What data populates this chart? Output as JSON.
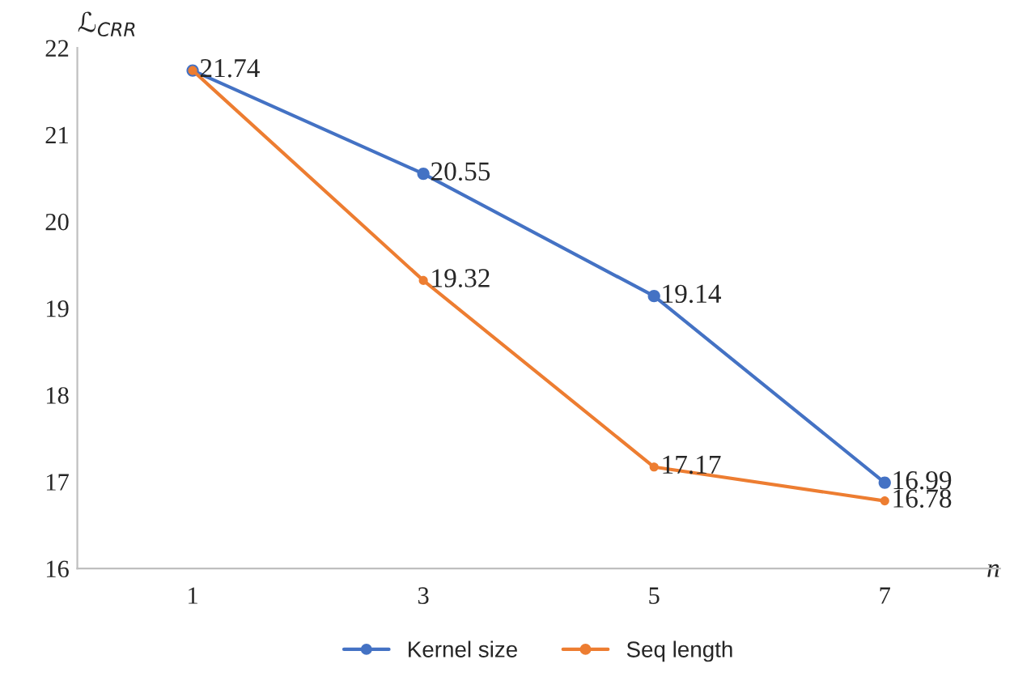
{
  "chart_data": {
    "type": "line",
    "ylabel": "ℒ$_{CRR}$",
    "xlabel": "n",
    "categories": [
      "1",
      "3",
      "5",
      "7"
    ],
    "series": [
      {
        "name": "Kernel size",
        "color": "#4472c4",
        "values": [
          21.74,
          20.55,
          19.14,
          16.99
        ],
        "value_labels": [
          "21.74",
          "20.55",
          "19.14",
          "16.99"
        ]
      },
      {
        "name": "Seq length",
        "color": "#ed7d31",
        "values": [
          21.74,
          19.32,
          17.17,
          16.78
        ],
        "value_labels": [
          null,
          "19.32",
          "17.17",
          "16.78"
        ]
      }
    ],
    "ylim": [
      16,
      22
    ],
    "yticks": [
      16,
      17,
      18,
      19,
      20,
      21,
      22
    ],
    "grid": false,
    "legend": "bottom",
    "marker": "circle",
    "line_style": "solid"
  }
}
